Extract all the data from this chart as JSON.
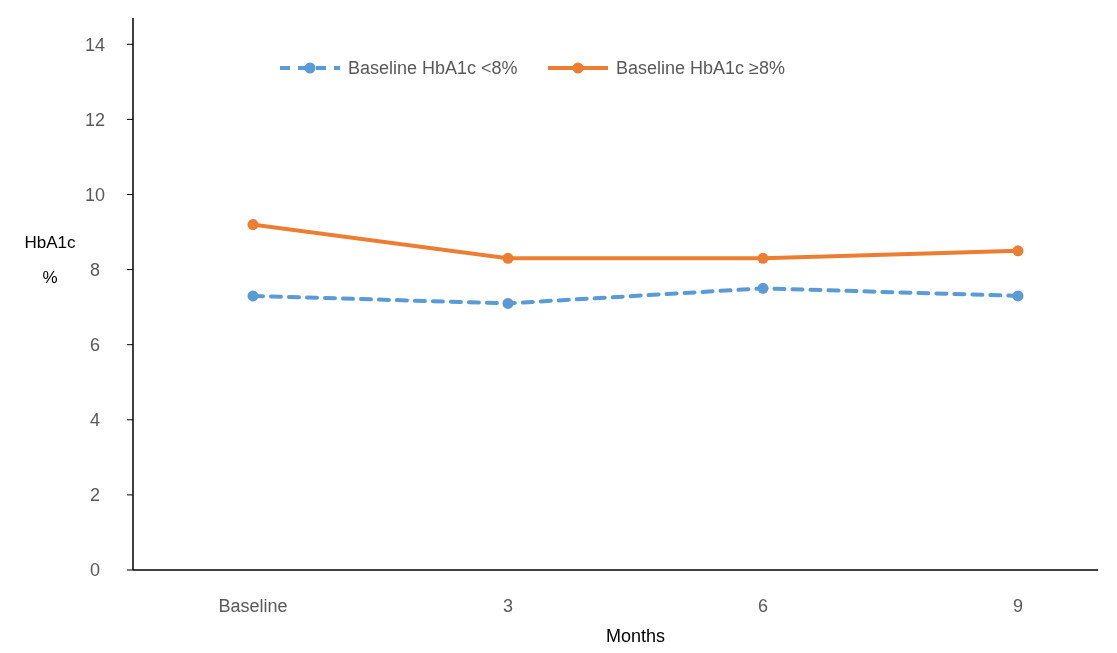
{
  "chart_data": {
    "type": "line",
    "xlabel": "Months",
    "ylabel": "HbA1c\n%",
    "categories": [
      "Baseline",
      "3",
      "6",
      "9"
    ],
    "series": [
      {
        "name": "Baseline HbA1c <8%",
        "color": "#5b9bd5",
        "values": [
          7.3,
          7.1,
          7.5,
          7.3
        ],
        "line_style": "dashed"
      },
      {
        "name": "Baseline HbA1c ≥8%",
        "color": "#ed7d31",
        "values": [
          9.2,
          8.3,
          8.3,
          8.5
        ],
        "line_style": "solid"
      }
    ],
    "ylim": [
      0,
      14.7
    ],
    "yticks": [
      0,
      2,
      4,
      6,
      8,
      10,
      12,
      14
    ],
    "grid": false,
    "legend": "top",
    "marker": "circle"
  }
}
